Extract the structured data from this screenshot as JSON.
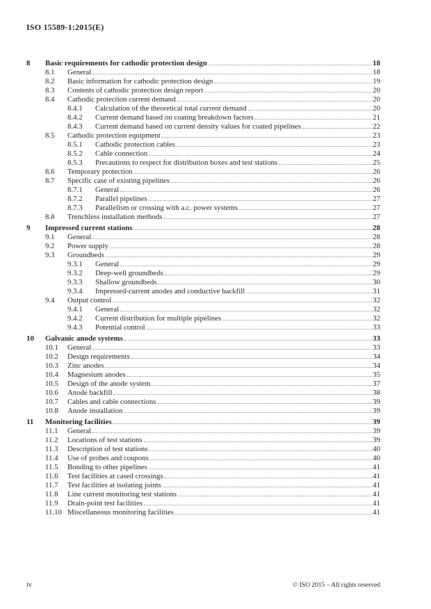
{
  "page": {
    "header_title": "ISO 15589-1:2015(E)",
    "footer_page_number": "iv",
    "footer_copyright": "© ISO 2015 – All rights reserved"
  },
  "colors": {
    "text": "#262626",
    "leader_dots": "#8f8f8f",
    "background": "#ffffff"
  },
  "toc": {
    "entries": [
      {
        "level": 1,
        "number": "8",
        "title": "Basic requirements for cathodic protection design",
        "page": "18"
      },
      {
        "level": 2,
        "number": "8.1",
        "title": "General",
        "page": "18"
      },
      {
        "level": 2,
        "number": "8.2",
        "title": "Basic information for cathodic protection design",
        "page": "19"
      },
      {
        "level": 2,
        "number": "8.3",
        "title": "Contents of cathodic protection design report",
        "page": "20"
      },
      {
        "level": 2,
        "number": "8.4",
        "title": "Cathodic protection current demand",
        "page": "20"
      },
      {
        "level": 3,
        "number": "8.4.1",
        "title": "Calculation of the theoretical total current demand",
        "page": "20"
      },
      {
        "level": 3,
        "number": "8.4.2",
        "title": "Current demand based on coating breakdown factors",
        "page": "21"
      },
      {
        "level": 3,
        "number": "8.4.3",
        "title": "Current demand based on current density values for coated pipelines",
        "page": "22"
      },
      {
        "level": 2,
        "number": "8.5",
        "title": "Cathodic protection equipment",
        "page": "23"
      },
      {
        "level": 3,
        "number": "8.5.1",
        "title": "Cathodic protection cables",
        "page": "23"
      },
      {
        "level": 3,
        "number": "8.5.2",
        "title": "Cable connection",
        "page": "24"
      },
      {
        "level": 3,
        "number": "8.5.3",
        "title": "Precautions to respect for distribution boxes and test stations",
        "page": "25"
      },
      {
        "level": 2,
        "number": "8.6",
        "title": "Temporary protection",
        "page": "26"
      },
      {
        "level": 2,
        "number": "8.7",
        "title": "Specific case of existing pipelines",
        "page": "26"
      },
      {
        "level": 3,
        "number": "8.7.1",
        "title": "General",
        "page": "26"
      },
      {
        "level": 3,
        "number": "8.7.2",
        "title": "Parallel pipelines",
        "page": "27"
      },
      {
        "level": 3,
        "number": "8.7.3",
        "title": "Parallelism or crossing with a.c. power systems",
        "page": "27"
      },
      {
        "level": 2,
        "number": "8.8",
        "title": "Trenchless installation methods",
        "page": "27"
      },
      {
        "level": 1,
        "number": "9",
        "title": "Impressed current stations",
        "page": "28"
      },
      {
        "level": 2,
        "number": "9.1",
        "title": "General",
        "page": "28"
      },
      {
        "level": 2,
        "number": "9.2",
        "title": "Power supply",
        "page": "28"
      },
      {
        "level": 2,
        "number": "9.3",
        "title": "Groundbeds",
        "page": "29"
      },
      {
        "level": 3,
        "number": "9.3.1",
        "title": "General",
        "page": "29"
      },
      {
        "level": 3,
        "number": "9.3.2",
        "title": "Deep-well groundbeds",
        "page": "29"
      },
      {
        "level": 3,
        "number": "9.3.3",
        "title": "Shallow groundbeds",
        "page": "30"
      },
      {
        "level": 3,
        "number": "9.3.4",
        "title": "Impressed-current anodes and conductive backfill",
        "page": "31"
      },
      {
        "level": 2,
        "number": "9.4",
        "title": "Output control",
        "page": "32"
      },
      {
        "level": 3,
        "number": "9.4.1",
        "title": "General",
        "page": "32"
      },
      {
        "level": 3,
        "number": "9.4.2",
        "title": "Current distribution for multiple pipelines",
        "page": "32"
      },
      {
        "level": 3,
        "number": "9.4.3",
        "title": "Potential control",
        "page": "33"
      },
      {
        "level": 1,
        "number": "10",
        "title": "Galvanic anode systems",
        "page": "33"
      },
      {
        "level": 2,
        "number": "10.1",
        "title": "General",
        "page": "33"
      },
      {
        "level": 2,
        "number": "10.2",
        "title": "Design requirements",
        "page": "34"
      },
      {
        "level": 2,
        "number": "10.3",
        "title": "Zinc anodes",
        "page": "34"
      },
      {
        "level": 2,
        "number": "10.4",
        "title": "Magnesium anodes",
        "page": "35"
      },
      {
        "level": 2,
        "number": "10.5",
        "title": "Design of the anode system",
        "page": "37"
      },
      {
        "level": 2,
        "number": "10.6",
        "title": "Anode backfill",
        "page": "38"
      },
      {
        "level": 2,
        "number": "10.7",
        "title": "Cables and cable connections",
        "page": "39"
      },
      {
        "level": 2,
        "number": "10.8",
        "title": "Anode installation",
        "page": "39"
      },
      {
        "level": 1,
        "number": "11",
        "title": "Monitoring facilities",
        "page": "39"
      },
      {
        "level": 2,
        "number": "11.1",
        "title": "General",
        "page": "39"
      },
      {
        "level": 2,
        "number": "11.2",
        "title": "Locations of test stations",
        "page": "39"
      },
      {
        "level": 2,
        "number": "11.3",
        "title": "Description of test stations",
        "page": "40"
      },
      {
        "level": 2,
        "number": "11.4",
        "title": "Use of probes and coupons",
        "page": "40"
      },
      {
        "level": 2,
        "number": "11.5",
        "title": "Bonding to other pipelines",
        "page": "41"
      },
      {
        "level": 2,
        "number": "11.6",
        "title": "Test facilities at cased crossings",
        "page": "41"
      },
      {
        "level": 2,
        "number": "11.7",
        "title": "Test facilities at isolating joints",
        "page": "41"
      },
      {
        "level": 2,
        "number": "11.8",
        "title": "Line current monitoring test stations",
        "page": "41"
      },
      {
        "level": 2,
        "number": "11.9",
        "title": "Drain-point test facilities",
        "page": "41"
      },
      {
        "level": 2,
        "number": "11.10",
        "title": "Miscellaneous monitoring facilities",
        "page": "41"
      }
    ]
  }
}
